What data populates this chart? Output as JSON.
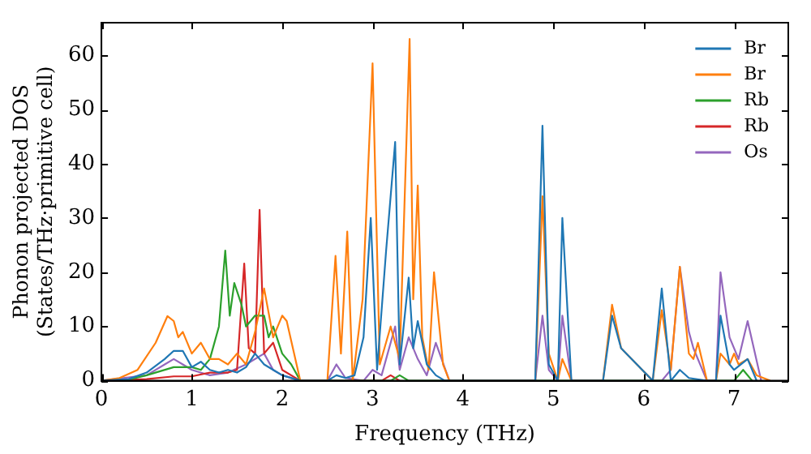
{
  "chart_data": {
    "type": "line",
    "xlabel": "Frequency (THz)",
    "ylabel": "Phonon projected DOS\n(States/THz·primitive cell)",
    "xlim": [
      0,
      7.6
    ],
    "ylim": [
      0,
      66
    ],
    "xticks": [
      0,
      1,
      2,
      3,
      4,
      5,
      6,
      7
    ],
    "yticks": [
      0,
      10,
      20,
      30,
      40,
      50,
      60
    ],
    "grid": false,
    "legend": "top right",
    "marker": "none",
    "line_style": "solid",
    "series": [
      {
        "name": "Br",
        "color": "#1f77b4",
        "x": [
          0,
          0.3,
          0.5,
          0.7,
          0.8,
          0.9,
          1.0,
          1.1,
          1.2,
          1.3,
          1.4,
          1.5,
          1.6,
          1.7,
          1.8,
          1.9,
          2.0,
          2.2,
          2.5,
          2.6,
          2.7,
          2.8,
          2.9,
          2.98,
          3.05,
          3.15,
          3.25,
          3.3,
          3.4,
          3.45,
          3.5,
          3.6,
          3.7,
          3.8,
          4.8,
          4.88,
          4.95,
          5.05,
          5.1,
          5.2,
          5.55,
          5.65,
          5.75,
          6.1,
          6.2,
          6.3,
          6.4,
          6.5,
          6.7,
          6.8,
          6.85,
          6.95,
          7.0,
          7.15,
          7.25
        ],
        "values": [
          0,
          0.3,
          1.5,
          4,
          5.5,
          5.5,
          2.5,
          3.5,
          2,
          1.5,
          2,
          1.5,
          2.5,
          5,
          3,
          2,
          1,
          0,
          0,
          1,
          0.5,
          1,
          8,
          30,
          2,
          24,
          44,
          3,
          19,
          6,
          11,
          3,
          1,
          0,
          0,
          47,
          3,
          0,
          30,
          0,
          0,
          12,
          6,
          0,
          17,
          0,
          2,
          0.5,
          0,
          0,
          12,
          3,
          2,
          4,
          0
        ]
      },
      {
        "name": "Br",
        "color": "#ff7f0e",
        "x": [
          0,
          0.2,
          0.4,
          0.6,
          0.73,
          0.8,
          0.85,
          0.9,
          1.0,
          1.1,
          1.2,
          1.3,
          1.4,
          1.5,
          1.6,
          1.7,
          1.8,
          1.9,
          2.0,
          2.05,
          2.2,
          2.5,
          2.59,
          2.65,
          2.72,
          2.78,
          2.89,
          3.0,
          3.08,
          3.2,
          3.3,
          3.41,
          3.45,
          3.5,
          3.55,
          3.62,
          3.68,
          3.78,
          3.85,
          4.8,
          4.88,
          4.95,
          5.05,
          5.1,
          5.2,
          5.55,
          5.65,
          5.75,
          6.1,
          6.2,
          6.3,
          6.4,
          6.5,
          6.55,
          6.6,
          6.7,
          6.8,
          6.85,
          6.95,
          7.0,
          7.05,
          7.15,
          7.25,
          7.4
        ],
        "values": [
          0,
          0.5,
          2,
          7,
          11.9,
          11,
          8,
          9,
          5,
          7,
          4,
          4,
          3,
          5,
          3,
          9,
          17,
          8,
          12,
          11,
          0,
          0,
          23,
          5,
          27.5,
          0,
          15,
          58.5,
          3,
          10,
          4,
          63,
          15,
          36,
          8,
          2,
          20,
          3,
          0,
          0,
          34,
          5,
          0,
          4,
          0,
          0,
          14,
          6,
          0,
          13,
          2,
          21,
          5,
          4,
          7,
          0,
          0,
          5,
          3,
          5,
          3,
          4,
          1,
          0
        ]
      },
      {
        "name": "Rb",
        "color": "#2ca02c",
        "x": [
          0,
          0.3,
          0.5,
          0.8,
          1.0,
          1.1,
          1.2,
          1.3,
          1.37,
          1.42,
          1.47,
          1.55,
          1.6,
          1.65,
          1.7,
          1.8,
          1.85,
          1.9,
          2.0,
          2.1,
          2.2,
          3.2,
          3.3,
          3.4,
          7.0,
          7.1,
          7.2
        ],
        "values": [
          0,
          0.2,
          1,
          2.5,
          2.5,
          2,
          4,
          10,
          24,
          12,
          18,
          14,
          10,
          11,
          12,
          12,
          8,
          10,
          5,
          3,
          0,
          0,
          1,
          0,
          0,
          2,
          0
        ]
      },
      {
        "name": "Rb",
        "color": "#d62728",
        "x": [
          0,
          0.5,
          0.8,
          1.0,
          1.2,
          1.4,
          1.5,
          1.58,
          1.63,
          1.7,
          1.75,
          1.8,
          1.9,
          2.0,
          2.2,
          3.1,
          3.2,
          3.3
        ],
        "values": [
          0,
          0.3,
          0.8,
          0.8,
          1.5,
          1.5,
          2,
          21.6,
          6,
          5,
          31.5,
          5,
          7,
          2,
          0,
          0,
          1,
          0
        ]
      },
      {
        "name": "Os",
        "color": "#9467bd",
        "x": [
          0,
          0.5,
          0.7,
          0.8,
          0.9,
          1.0,
          1.2,
          1.4,
          1.6,
          1.8,
          1.9,
          2.0,
          2.2,
          2.5,
          2.6,
          2.7,
          2.9,
          3.0,
          3.1,
          3.25,
          3.3,
          3.4,
          3.5,
          3.6,
          3.7,
          3.85,
          4.8,
          4.88,
          4.95,
          5.05,
          5.1,
          5.2,
          6.2,
          6.3,
          6.4,
          6.5,
          6.55,
          6.7,
          6.8,
          6.85,
          6.95,
          7.05,
          7.15,
          7.3
        ],
        "values": [
          0,
          1,
          3,
          4,
          3,
          2,
          1,
          1.5,
          3,
          5,
          2,
          1,
          0,
          0,
          3,
          0.5,
          0,
          2,
          1,
          10,
          2,
          8,
          4,
          1,
          7,
          0,
          0,
          12,
          2,
          0,
          12,
          0,
          0,
          2,
          21,
          9,
          6,
          0,
          0,
          20,
          8,
          4,
          11,
          0
        ]
      }
    ]
  }
}
